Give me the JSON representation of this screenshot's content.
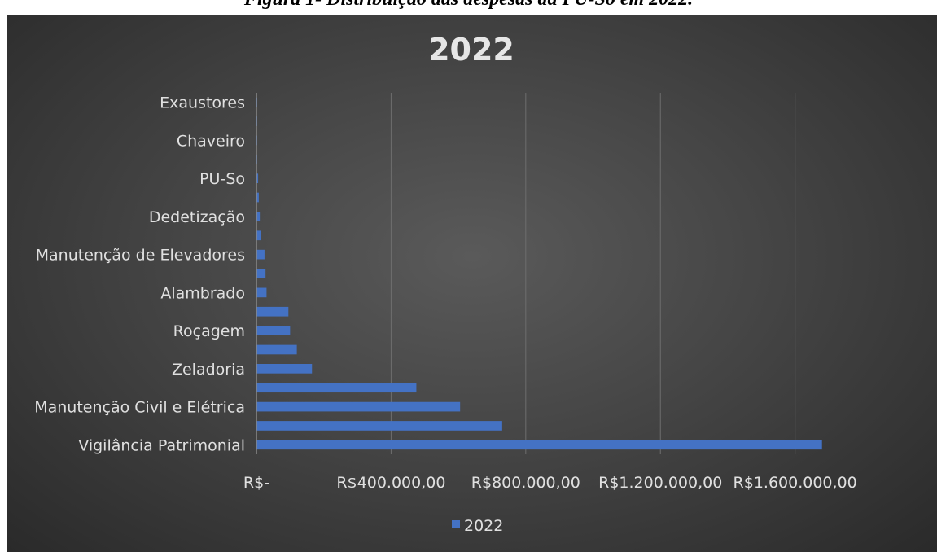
{
  "caption": "Figura 1- Distribuição das despesas da PU-So em 2022.",
  "chart_data": {
    "type": "bar",
    "orientation": "horizontal",
    "title": "2022",
    "xlabel": "",
    "ylabel": "",
    "categories": [
      "Vigilância Patrimonial",
      "",
      "Manutenção Civil e Elétrica",
      "",
      "Zeladoria",
      "",
      "Roçagem",
      "",
      "Alambrado",
      "",
      "Manutenção de Elevadores",
      "",
      "Dedetização",
      "",
      "PU-So",
      "",
      "Chaveiro",
      "",
      "Exaustores"
    ],
    "series": [
      {
        "name": "2022",
        "color": "#4472c4",
        "values": [
          1680000,
          730000,
          605000,
          475000,
          165000,
          120000,
          100000,
          95000,
          30000,
          27000,
          24000,
          14000,
          10000,
          7000,
          5000,
          2000,
          1500,
          1000,
          500
        ]
      }
    ],
    "xlim": [
      0,
      1700000
    ],
    "xticks": [
      0,
      400000,
      800000,
      1200000,
      1600000
    ],
    "xtick_labels": [
      "R$-",
      "R$400.000,00",
      "R$800.000,00",
      "R$1.200.000,00",
      "R$1.600.000,00"
    ],
    "grid": true,
    "legend": {
      "position": "bottom",
      "entries": [
        "2022"
      ]
    },
    "background": "#404040"
  }
}
